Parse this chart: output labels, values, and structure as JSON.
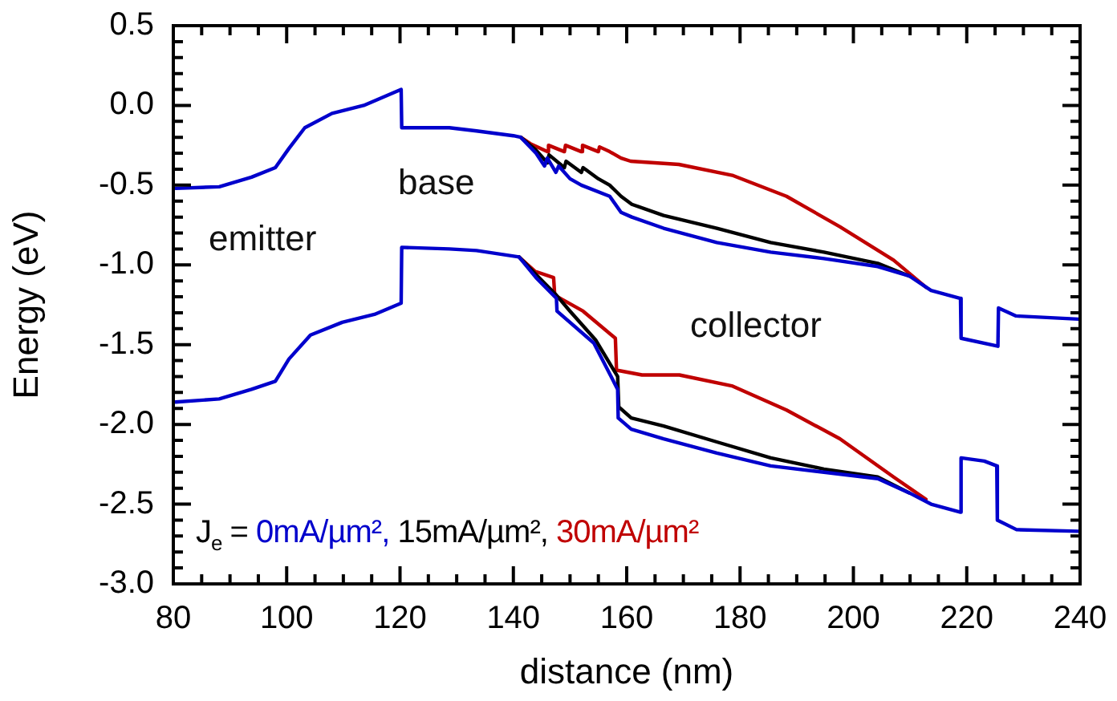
{
  "chart_data": {
    "type": "line",
    "xlabel": "distance (nm)",
    "ylabel": "Energy (eV)",
    "legend_title": "J$_{e}$ =",
    "legend": "bottom left",
    "grid": false,
    "marker": "none",
    "line_style": "solid",
    "annotations": [
      "emitter",
      "base",
      "collector"
    ],
    "xlim": [
      80,
      240
    ],
    "ylim": [
      -3.0,
      0.5
    ],
    "xticks": [
      80,
      {
        "value": 85,
        "label": null
      },
      {
        "value": 90,
        "label": null
      },
      {
        "value": 95,
        "label": null
      },
      100,
      {
        "value": 105,
        "label": null
      },
      {
        "value": 110,
        "label": null
      },
      {
        "value": 115,
        "label": null
      },
      120,
      {
        "value": 125,
        "label": null
      },
      {
        "value": 130,
        "label": null
      },
      {
        "value": 135,
        "label": null
      },
      140,
      {
        "value": 145,
        "label": null
      },
      {
        "value": 150,
        "label": null
      },
      {
        "value": 155,
        "label": null
      },
      160,
      {
        "value": 165,
        "label": null
      },
      {
        "value": 170,
        "label": null
      },
      {
        "value": 175,
        "label": null
      },
      180,
      {
        "value": 185,
        "label": null
      },
      {
        "value": 190,
        "label": null
      },
      {
        "value": 195,
        "label": null
      },
      200,
      {
        "value": 205,
        "label": null
      },
      {
        "value": 210,
        "label": null
      },
      {
        "value": 215,
        "label": null
      },
      220,
      {
        "value": 225,
        "label": null
      },
      {
        "value": 230,
        "label": null
      },
      {
        "value": 235,
        "label": null
      },
      240
    ],
    "yticks": [
      {
        "value": -3.0,
        "label": "-3.0"
      },
      {
        "value": -2.9,
        "label": null
      },
      {
        "value": -2.8,
        "label": null
      },
      {
        "value": -2.7,
        "label": null
      },
      {
        "value": -2.6,
        "label": null
      },
      -2.5,
      {
        "value": -2.4,
        "label": null
      },
      {
        "value": -2.3,
        "label": null
      },
      {
        "value": -2.2,
        "label": null
      },
      {
        "value": -2.1,
        "label": null
      },
      {
        "value": -2.0,
        "label": "-2.0"
      },
      {
        "value": -1.9,
        "label": null
      },
      {
        "value": -1.8,
        "label": null
      },
      {
        "value": -1.7,
        "label": null
      },
      {
        "value": -1.6,
        "label": null
      },
      -1.5,
      {
        "value": -1.4,
        "label": null
      },
      {
        "value": -1.3,
        "label": null
      },
      {
        "value": -1.2,
        "label": null
      },
      {
        "value": -1.1,
        "label": null
      },
      {
        "value": -1.0,
        "label": "-1.0"
      },
      {
        "value": -0.9,
        "label": null
      },
      {
        "value": -0.8,
        "label": null
      },
      {
        "value": -0.7,
        "label": null
      },
      {
        "value": -0.6,
        "label": null
      },
      -0.5,
      {
        "value": -0.4,
        "label": null
      },
      {
        "value": -0.3,
        "label": null
      },
      {
        "value": -0.2,
        "label": null
      },
      {
        "value": -0.1,
        "label": null
      },
      {
        "value": 0.0,
        "label": "0.0"
      },
      {
        "value": 0.1,
        "label": null
      },
      {
        "value": 0.2,
        "label": null
      },
      {
        "value": 0.3,
        "label": null
      },
      {
        "value": 0.4,
        "label": null
      },
      0.5
    ],
    "series": [
      {
        "name": "0mA/µm²,",
        "color": "#0000cc",
        "x": [
          80.4,
          88.1,
          93.8,
          98,
          100.4,
          103.2,
          108,
          113.6,
          120.2,
          120.3,
          128.7,
          133.5,
          140,
          141.3,
          144,
          145.5,
          146,
          147.5,
          148,
          150,
          152,
          157,
          159,
          160.9,
          166.5,
          175.9,
          185.4,
          194.8,
          204.3,
          209.9,
          213.7,
          218.9,
          219,
          225.5,
          225.6,
          228.7,
          239.7
        ],
        "values": [
          -0.52,
          -0.51,
          -0.45,
          -0.39,
          -0.27,
          -0.14,
          -0.05,
          0.0,
          0.1,
          -0.14,
          -0.14,
          -0.16,
          -0.19,
          -0.2,
          -0.3,
          -0.38,
          -0.33,
          -0.42,
          -0.38,
          -0.46,
          -0.5,
          -0.57,
          -0.67,
          -0.7,
          -0.77,
          -0.86,
          -0.92,
          -0.96,
          -1.01,
          -1.07,
          -1.16,
          -1.21,
          -1.46,
          -1.51,
          -1.27,
          -1.32,
          -1.34
        ]
      },
      {
        "color": "#0000cc",
        "x": [
          80.4,
          88.1,
          93.8,
          98,
          100.4,
          104.2,
          109.8,
          115.5,
          120.2,
          120.3,
          128.7,
          133.5,
          141,
          144,
          147.6,
          147.7,
          154.2,
          158.4,
          158.5,
          160.8,
          166.5,
          175.9,
          185.4,
          194.8,
          204.3,
          209.9,
          213.7,
          218.9,
          219,
          223.1,
          225.3,
          225.4,
          228.8,
          239.7
        ],
        "values": [
          -1.86,
          -1.84,
          -1.78,
          -1.73,
          -1.59,
          -1.44,
          -1.36,
          -1.31,
          -1.24,
          -0.89,
          -0.9,
          -0.91,
          -0.95,
          -1.08,
          -1.21,
          -1.29,
          -1.49,
          -1.78,
          -1.96,
          -2.03,
          -2.09,
          -2.18,
          -2.26,
          -2.3,
          -2.34,
          -2.43,
          -2.5,
          -2.55,
          -2.21,
          -2.23,
          -2.26,
          -2.6,
          -2.66,
          -2.67
        ]
      },
      {
        "name": "15mA/µm²,",
        "color": "#000000",
        "x": [
          141.3,
          144,
          146,
          146.3,
          149,
          149.3,
          152,
          152.3,
          155,
          157,
          159,
          160.9,
          166.5,
          175.9,
          185.4,
          194.8,
          204.3,
          209.9
        ],
        "values": [
          -0.2,
          -0.28,
          -0.36,
          -0.31,
          -0.39,
          -0.35,
          -0.42,
          -0.39,
          -0.46,
          -0.5,
          -0.57,
          -0.62,
          -0.69,
          -0.77,
          -0.86,
          -0.92,
          -0.99,
          -1.07
        ]
      },
      {
        "color": "#000000",
        "x": [
          141,
          144,
          147.6,
          150,
          154.5,
          158.4,
          158.6,
          160.8,
          166.5,
          175.9,
          185.4,
          194.8,
          204.3,
          209.9
        ],
        "values": [
          -0.95,
          -1.06,
          -1.19,
          -1.29,
          -1.47,
          -1.7,
          -1.89,
          -1.96,
          -2.01,
          -2.11,
          -2.21,
          -2.28,
          -2.33,
          -2.43
        ]
      },
      {
        "name": "30mA/µm²",
        "color": "#c00000",
        "x": [
          141.3,
          143,
          146,
          146.2,
          149,
          149.2,
          152,
          152.2,
          155,
          155.2,
          157,
          159,
          160.7,
          169.2,
          178.8,
          188.2,
          197.6,
          207.1,
          212.8
        ],
        "values": [
          -0.2,
          -0.24,
          -0.29,
          -0.25,
          -0.29,
          -0.25,
          -0.29,
          -0.25,
          -0.29,
          -0.26,
          -0.29,
          -0.33,
          -0.35,
          -0.37,
          -0.44,
          -0.57,
          -0.76,
          -0.97,
          -1.14
        ]
      },
      {
        "color": "#c00000",
        "x": [
          141,
          143.8,
          147.1,
          147.3,
          152.3,
          158,
          158.2,
          162.7,
          169.3,
          178.7,
          188.2,
          197.6,
          207.1,
          212.8
        ],
        "values": [
          -0.95,
          -1.04,
          -1.08,
          -1.19,
          -1.29,
          -1.46,
          -1.66,
          -1.69,
          -1.69,
          -1.76,
          -1.91,
          -2.09,
          -2.33,
          -2.47
        ]
      }
    ]
  }
}
